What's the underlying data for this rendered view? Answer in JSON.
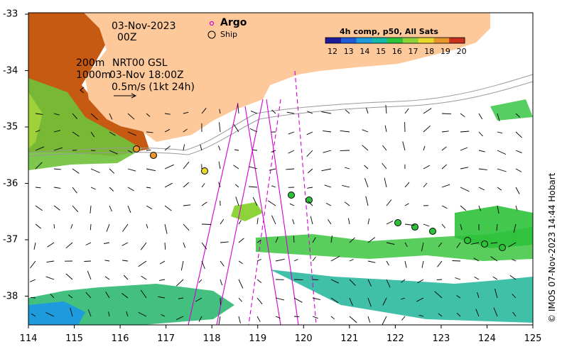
{
  "map": {
    "date_line1": "03-Nov-2023",
    "date_line2": "00Z",
    "contour_200": "200m",
    "contour_1000": "1000m",
    "product": "NRT00 GSL",
    "product_time": "03-Nov 18:00Z",
    "scale_text": "0.5m/s (1kt 24h)",
    "legend_argo": "Argo",
    "legend_ship": "Ship",
    "colorbar_title": "4h comp, p50, All Sats",
    "colorbar_ticks": [
      "12",
      "13",
      "14",
      "15",
      "16",
      "17",
      "18",
      "19",
      "20"
    ],
    "colorbar_colors": [
      "#1a1a9a",
      "#1f5bd6",
      "#1e9bdc",
      "#13b8a8",
      "#2cc23a",
      "#8fd33a",
      "#e6d92a",
      "#e8962a",
      "#c8301e"
    ],
    "x_ticks": [
      "114",
      "115",
      "116",
      "117",
      "118",
      "119",
      "120",
      "121",
      "122",
      "123",
      "124",
      "125"
    ],
    "y_ticks": [
      "-33",
      "-34",
      "-35",
      "-36",
      "-37",
      "-38"
    ],
    "credit": "© IMOS 07-Nov-2023 14:44 Hobart",
    "land_color": "#fdc89a",
    "argo_color": "#d400d4"
  }
}
